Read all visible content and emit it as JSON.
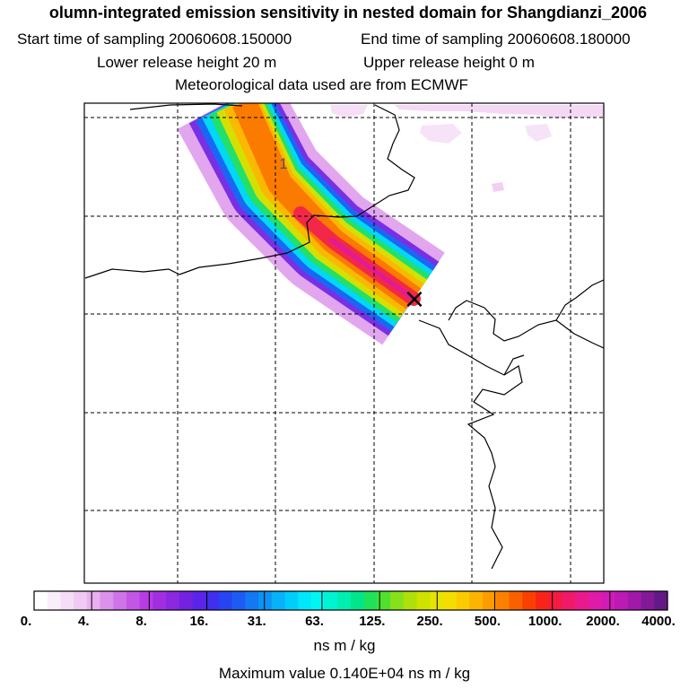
{
  "header": {
    "title": "olumn-integrated emission sensitivity in nested domain for Shangdianzi_2006",
    "start_label": "Start time of sampling 20060608.150000",
    "end_label": "End time of sampling 20060608.180000",
    "lower_label": "Lower release height   20 m",
    "upper_label": "Upper release height    0 m",
    "met_label": "Meteorological data used are from ECMWF"
  },
  "map": {
    "plume_label": "1",
    "release_marker": "×"
  },
  "colorbar": {
    "ticks": [
      "0.",
      "4.",
      "8.",
      "16.",
      "31.",
      "63.",
      "125.",
      "250.",
      "500.",
      "1000.",
      "2000.",
      "4000."
    ],
    "colors": [
      "#ffffff",
      "#fbeefb",
      "#f6ddf7",
      "#f0c9f4",
      "#e8b0f0",
      "#dc91ec",
      "#cf74e8",
      "#c456e6",
      "#b63de4",
      "#a22ee2",
      "#8c28e0",
      "#7322e0",
      "#5a25e8",
      "#3f2fee",
      "#2844f2",
      "#1c5cf4",
      "#1278f4",
      "#0d92f6",
      "#07b2f8",
      "#00cdfb",
      "#00e6fb",
      "#00f6f0",
      "#00f3d3",
      "#00eeb0",
      "#00e68a",
      "#1ee25a",
      "#52e030",
      "#86e01a",
      "#afe00c",
      "#cfe200",
      "#e6e400",
      "#f4dd00",
      "#fbcb00",
      "#fcb400",
      "#fc9c00",
      "#fc8000",
      "#fb6000",
      "#fa4000",
      "#f92418",
      "#f51a40",
      "#f01a68",
      "#ea1a8c",
      "#e21aa8",
      "#d21ab6",
      "#bc1ab4",
      "#a019a8",
      "#821a98",
      "#641a86"
    ],
    "units_label": "ns m / kg",
    "max_value_label": "Maximum value  0.140E+04 ns m / kg"
  }
}
